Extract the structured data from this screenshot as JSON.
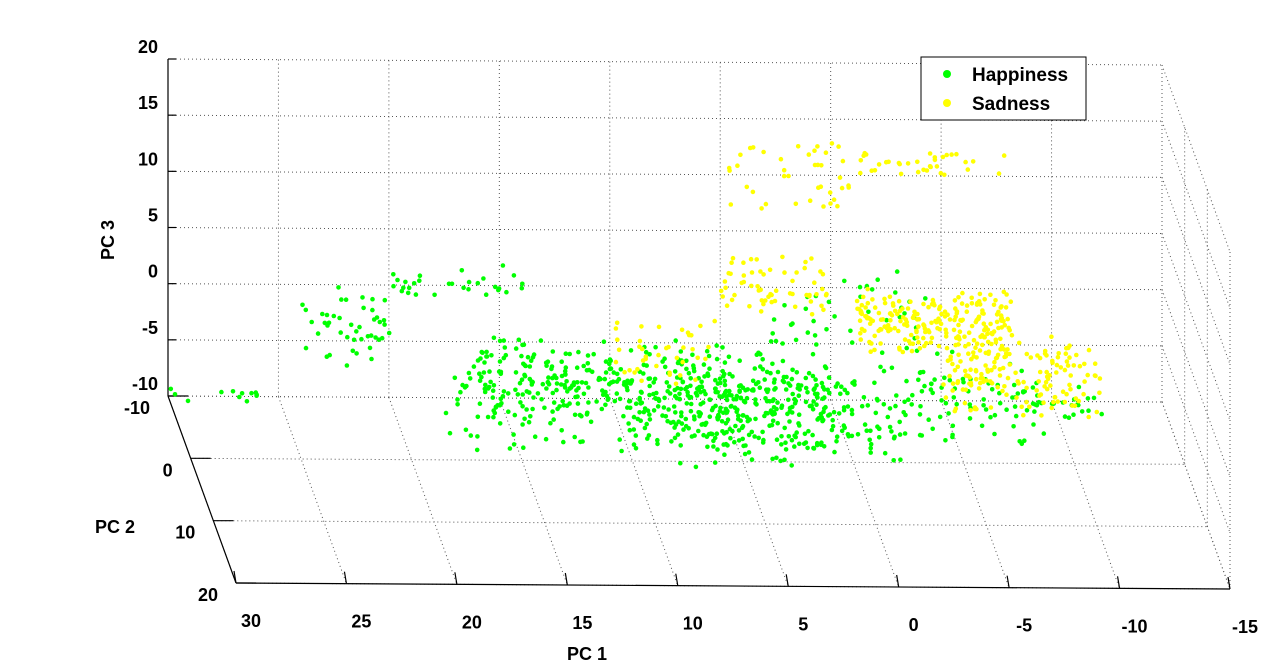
{
  "chart_data": {
    "type": "scatter",
    "dimensions": 3,
    "title": "",
    "xlabel": "PC 1",
    "ylabel": "PC 2",
    "zlabel": "PC 3",
    "xlim": [
      -15,
      30
    ],
    "ylim": [
      -10,
      20
    ],
    "zlim": [
      -10,
      20
    ],
    "x_ticks": [
      "30",
      "25",
      "20",
      "15",
      "10",
      "5",
      "0",
      "-5",
      "-10",
      "-15"
    ],
    "y_ticks": [
      "-10",
      "0",
      "10",
      "20"
    ],
    "z_ticks": [
      "20",
      "15",
      "10",
      "5",
      "0",
      "-5",
      "-10"
    ],
    "grid": true,
    "legend_position": "top-right",
    "series": [
      {
        "name": "Happiness",
        "color": "#00ff00",
        "marker": "dot",
        "clusters": [
          {
            "x": [
              30,
              26
            ],
            "y": [
              -10,
              -9
            ],
            "z": [
              -10,
              -9
            ],
            "n": 12
          },
          {
            "x": [
              24,
              20
            ],
            "y": [
              -10,
              -7
            ],
            "z": [
              -6,
              0
            ],
            "n": 45
          },
          {
            "x": [
              20,
              14
            ],
            "y": [
              -10,
              -7
            ],
            "z": [
              0,
              2
            ],
            "n": 30
          },
          {
            "x": [
              16,
              10
            ],
            "y": [
              -10,
              -6
            ],
            "z": [
              -10,
              -4
            ],
            "n": 110
          },
          {
            "x": [
              18,
              6
            ],
            "y": [
              -6,
              0
            ],
            "z": [
              -10,
              -3
            ],
            "n": 160
          },
          {
            "x": [
              10,
              0
            ],
            "y": [
              -10,
              0
            ],
            "z": [
              -10,
              -4
            ],
            "n": 260
          },
          {
            "x": [
              8,
              -2
            ],
            "y": [
              -8,
              2
            ],
            "z": [
              -10,
              -5
            ],
            "n": 200
          },
          {
            "x": [
              3,
              -4
            ],
            "y": [
              -10,
              -4
            ],
            "z": [
              -4,
              2
            ],
            "n": 40
          },
          {
            "x": [
              -2,
              -9
            ],
            "y": [
              -10,
              -2
            ],
            "z": [
              -10,
              -5
            ],
            "n": 90
          },
          {
            "x": [
              -9,
              -12
            ],
            "y": [
              -10,
              -6
            ],
            "z": [
              -10,
              -8
            ],
            "n": 20
          }
        ]
      },
      {
        "name": "Sadness",
        "color": "#ffff00",
        "marker": "dot",
        "clusters": [
          {
            "x": [
              5,
              -1
            ],
            "y": [
              -10,
              -10
            ],
            "z": [
              7,
              13
            ],
            "n": 40
          },
          {
            "x": [
              -1,
              -8
            ],
            "y": [
              -10,
              -10
            ],
            "z": [
              10,
              12
            ],
            "n": 35
          },
          {
            "x": [
              5,
              0
            ],
            "y": [
              -10,
              -9
            ],
            "z": [
              -2,
              3
            ],
            "n": 60
          },
          {
            "x": [
              -1,
              -8
            ],
            "y": [
              -10,
              -6
            ],
            "z": [
              -4,
              0
            ],
            "n": 220
          },
          {
            "x": [
              -5,
              -12
            ],
            "y": [
              -10,
              -7
            ],
            "z": [
              -10,
              -4
            ],
            "n": 160
          },
          {
            "x": [
              10,
              5
            ],
            "y": [
              -10,
              -8
            ],
            "z": [
              -8,
              -3
            ],
            "n": 40
          }
        ]
      }
    ]
  }
}
